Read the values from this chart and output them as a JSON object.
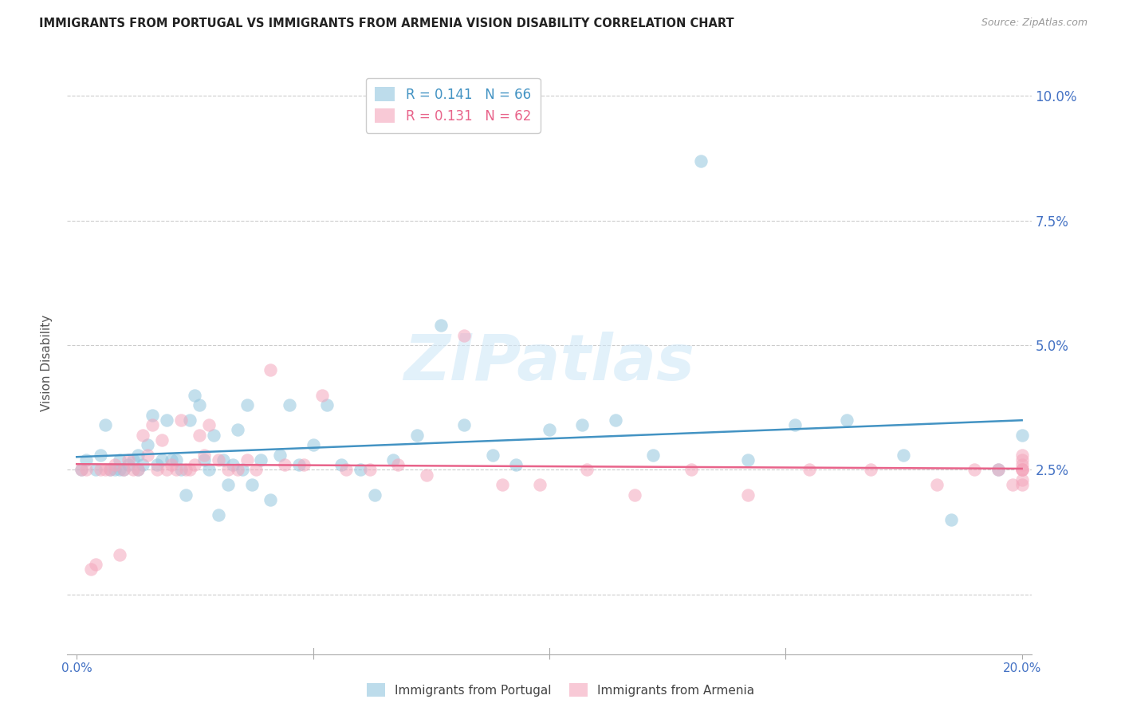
{
  "title": "IMMIGRANTS FROM PORTUGAL VS IMMIGRANTS FROM ARMENIA VISION DISABILITY CORRELATION CHART",
  "source": "Source: ZipAtlas.com",
  "ylabel": "Vision Disability",
  "xlim": [
    -0.002,
    0.202
  ],
  "ylim": [
    -0.012,
    0.105
  ],
  "ytick_vals": [
    0.0,
    0.025,
    0.05,
    0.075,
    0.1
  ],
  "ytick_labels_right": [
    "",
    "2.5%",
    "5.0%",
    "7.5%",
    "10.0%"
  ],
  "xtick_vals": [
    0.0,
    0.05,
    0.1,
    0.15,
    0.2
  ],
  "xtick_labels": [
    "0.0%",
    "",
    "",
    "",
    "20.0%"
  ],
  "color_blue": "#92c5de",
  "color_pink": "#f4a6bc",
  "line_blue": "#4393c3",
  "line_pink": "#e8638a",
  "R_blue": 0.141,
  "N_blue": 66,
  "R_pink": 0.131,
  "N_pink": 62,
  "legend_label_blue": "Immigrants from Portugal",
  "legend_label_pink": "Immigrants from Armenia",
  "watermark": "ZIPatlas",
  "portugal_x": [
    0.001,
    0.002,
    0.004,
    0.005,
    0.006,
    0.007,
    0.008,
    0.009,
    0.009,
    0.01,
    0.011,
    0.012,
    0.013,
    0.013,
    0.014,
    0.015,
    0.016,
    0.017,
    0.018,
    0.019,
    0.02,
    0.021,
    0.022,
    0.023,
    0.024,
    0.025,
    0.026,
    0.027,
    0.028,
    0.029,
    0.03,
    0.031,
    0.032,
    0.033,
    0.034,
    0.035,
    0.036,
    0.037,
    0.039,
    0.041,
    0.043,
    0.045,
    0.047,
    0.05,
    0.053,
    0.056,
    0.06,
    0.063,
    0.067,
    0.072,
    0.077,
    0.082,
    0.088,
    0.093,
    0.1,
    0.107,
    0.114,
    0.122,
    0.132,
    0.142,
    0.152,
    0.163,
    0.175,
    0.185,
    0.195,
    0.2
  ],
  "portugal_y": [
    0.025,
    0.027,
    0.025,
    0.028,
    0.034,
    0.025,
    0.025,
    0.025,
    0.027,
    0.025,
    0.026,
    0.027,
    0.025,
    0.028,
    0.026,
    0.03,
    0.036,
    0.026,
    0.027,
    0.035,
    0.027,
    0.027,
    0.025,
    0.02,
    0.035,
    0.04,
    0.038,
    0.027,
    0.025,
    0.032,
    0.016,
    0.027,
    0.022,
    0.026,
    0.033,
    0.025,
    0.038,
    0.022,
    0.027,
    0.019,
    0.028,
    0.038,
    0.026,
    0.03,
    0.038,
    0.026,
    0.025,
    0.02,
    0.027,
    0.032,
    0.054,
    0.034,
    0.028,
    0.026,
    0.033,
    0.034,
    0.035,
    0.028,
    0.087,
    0.027,
    0.034,
    0.035,
    0.028,
    0.015,
    0.025,
    0.032
  ],
  "armenia_x": [
    0.001,
    0.002,
    0.003,
    0.004,
    0.005,
    0.006,
    0.007,
    0.008,
    0.009,
    0.01,
    0.011,
    0.012,
    0.013,
    0.014,
    0.015,
    0.016,
    0.017,
    0.018,
    0.019,
    0.02,
    0.021,
    0.022,
    0.023,
    0.024,
    0.025,
    0.026,
    0.027,
    0.028,
    0.03,
    0.032,
    0.034,
    0.036,
    0.038,
    0.041,
    0.044,
    0.048,
    0.052,
    0.057,
    0.062,
    0.068,
    0.074,
    0.082,
    0.09,
    0.098,
    0.108,
    0.118,
    0.13,
    0.142,
    0.155,
    0.168,
    0.182,
    0.19,
    0.195,
    0.198,
    0.2,
    0.2,
    0.2,
    0.2,
    0.2,
    0.2,
    0.2,
    0.2
  ],
  "armenia_y": [
    0.025,
    0.025,
    0.005,
    0.006,
    0.025,
    0.025,
    0.025,
    0.026,
    0.008,
    0.025,
    0.027,
    0.025,
    0.025,
    0.032,
    0.028,
    0.034,
    0.025,
    0.031,
    0.025,
    0.026,
    0.025,
    0.035,
    0.025,
    0.025,
    0.026,
    0.032,
    0.028,
    0.034,
    0.027,
    0.025,
    0.025,
    0.027,
    0.025,
    0.045,
    0.026,
    0.026,
    0.04,
    0.025,
    0.025,
    0.026,
    0.024,
    0.052,
    0.022,
    0.022,
    0.025,
    0.02,
    0.025,
    0.02,
    0.025,
    0.025,
    0.022,
    0.025,
    0.025,
    0.022,
    0.025,
    0.023,
    0.027,
    0.028,
    0.025,
    0.022,
    0.025,
    0.026
  ]
}
